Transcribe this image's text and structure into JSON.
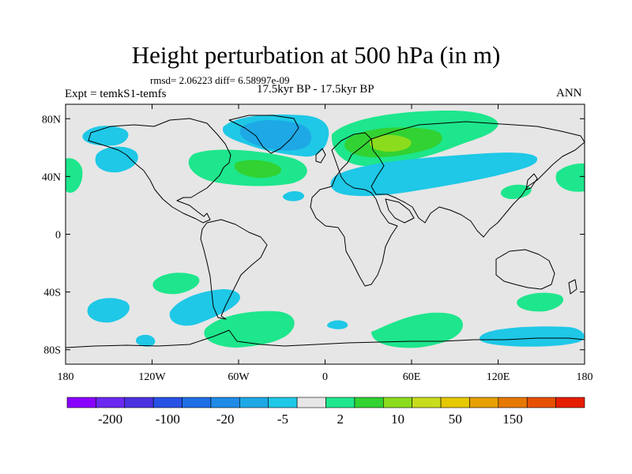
{
  "title": "Height perturbation at 500 hPa (in m)",
  "stats": "rmsd= 2.06223 diff= 6.58997e-09",
  "period": "17.5kyr BP - 17.5kyr BP",
  "experiment": "Expt = temkS1-temfs",
  "season": "ANN",
  "map": {
    "projection": "cylindrical-equidistant",
    "background_color": "#e6e6e6",
    "x_ticks": [
      "180",
      "120W",
      "60W",
      "0",
      "60E",
      "120E",
      "180"
    ],
    "y_ticks": [
      "80N",
      "40N",
      "0",
      "40S",
      "80S"
    ]
  },
  "colorbar": {
    "colors": [
      "#8a00ff",
      "#6a28f0",
      "#4b32e0",
      "#2851e6",
      "#1e6ee6",
      "#1e8ce6",
      "#1ea8e6",
      "#1ec8e6",
      "#e6e6e6",
      "#1ee68c",
      "#32d232",
      "#8cdc1e",
      "#c8dc1e",
      "#e6c800",
      "#e6a000",
      "#e67800",
      "#e65000",
      "#e61e00"
    ],
    "labels": [
      "-200",
      "-100",
      "-20",
      "-5",
      "2",
      "10",
      "50",
      "150"
    ]
  },
  "field_patches": [
    {
      "name": "north-america-arctic-negative",
      "lon": -52,
      "lat": 69,
      "color": "#1ec8e6"
    },
    {
      "name": "greenland-core-negative",
      "lon": -46,
      "lat": 73,
      "color": "#1ea8e6"
    },
    {
      "name": "alaska-negative",
      "lon": -152,
      "lat": 67,
      "color": "#1ec8e6"
    },
    {
      "name": "pacific-negative",
      "lon": -145,
      "lat": 52,
      "color": "#1ec8e6"
    },
    {
      "name": "east-america-positive",
      "lon": -60,
      "lat": 44,
      "color": "#1ee68c"
    },
    {
      "name": "east-america-core-positive",
      "lon": -50,
      "lat": 44,
      "color": "#32d232"
    },
    {
      "name": "north-atlantic-negative",
      "lon": -30,
      "lat": 27,
      "color": "#1ec8e6"
    },
    {
      "name": "scandinavia-positive",
      "lon": 50,
      "lat": 64,
      "color": "#1ee68c"
    },
    {
      "name": "scandinavia-core-positive",
      "lon": 45,
      "lat": 64,
      "color": "#32d232"
    },
    {
      "name": "scandinavia-peak-positive",
      "lon": 45,
      "lat": 60,
      "color": "#8cdc1e"
    },
    {
      "name": "eurasia-negative",
      "lon": 60,
      "lat": 37,
      "color": "#1ec8e6"
    },
    {
      "name": "east-asia-positive",
      "lon": 130,
      "lat": 30,
      "color": "#1ee68c"
    },
    {
      "name": "north-pacific-positive",
      "lon": 165,
      "lat": 40,
      "color": "#1ee68c"
    },
    {
      "name": "dateline-west-positive",
      "lon": -178,
      "lat": 40,
      "color": "#1ee68c"
    },
    {
      "name": "south-america-negative",
      "lon": -65,
      "lat": -55,
      "color": "#1ec8e6"
    },
    {
      "name": "south-pacific-negative",
      "lon": -155,
      "lat": -57,
      "color": "#1ec8e6"
    },
    {
      "name": "southeast-pacific-positive",
      "lon": -75,
      "lat": -33,
      "color": "#1ee68c"
    },
    {
      "name": "weddell-positive",
      "lon": -45,
      "lat": -75,
      "color": "#1ee68c"
    },
    {
      "name": "south-atlantic-negative",
      "lon": 10,
      "lat": -69,
      "color": "#1ec8e6"
    },
    {
      "name": "indian-ocean-positive",
      "lon": 60,
      "lat": -72,
      "color": "#1ee68c"
    },
    {
      "name": "south-indian-negative",
      "lon": 135,
      "lat": -75,
      "color": "#1ec8e6"
    },
    {
      "name": "southwest-pacific-positive",
      "lon": 148,
      "lat": -55,
      "color": "#1ee68c"
    }
  ]
}
